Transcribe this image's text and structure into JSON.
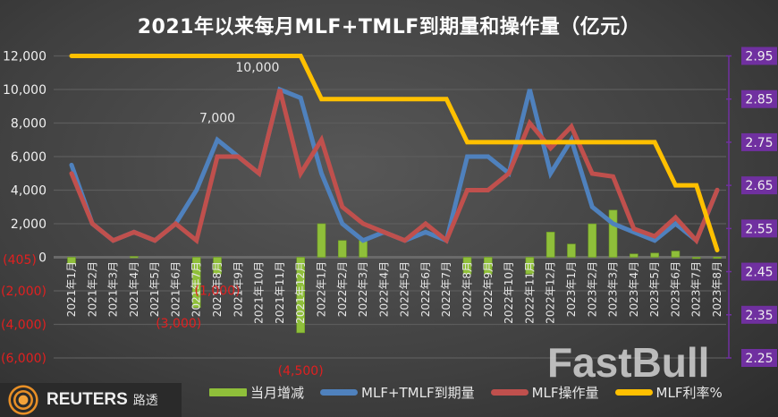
{
  "title": "2021年以来每月MLF+TMLF到期量和操作量（亿元）",
  "chart_data": {
    "type": "bar+line",
    "title": "2021年以来每月MLF+TMLF到期量和操作量（亿元）",
    "categories": [
      "2021年1月",
      "2021年2月",
      "2021年3月",
      "2021年4月",
      "2021年5月",
      "2021年6月",
      "2021年7月",
      "2021年8月",
      "2021年9月",
      "2021年10月",
      "2021年11月",
      "2021年12月",
      "2022年1月",
      "2022年2月",
      "2022年3月",
      "2022年4月",
      "2022年5月",
      "2022年6月",
      "2022年7月",
      "2022年8月",
      "2022年9月",
      "2022年10月",
      "2022年11月",
      "2022年12月",
      "2023年1月",
      "2023年2月",
      "2023年3月",
      "2023年4月",
      "2023年5月",
      "2023年6月",
      "2023年7月",
      "2023年8月"
    ],
    "series": [
      {
        "name": "当月增减",
        "type": "bar",
        "axis": "left",
        "color": "#8fbf3a",
        "values": [
          -405,
          0,
          0,
          50,
          0,
          0,
          -3000,
          -1000,
          0,
          0,
          0,
          -4500,
          2000,
          1000,
          1000,
          0,
          0,
          0,
          0,
          -1000,
          -1000,
          0,
          -1000,
          1500,
          790,
          1990,
          2810,
          200,
          250,
          370,
          -30,
          10
        ]
      },
      {
        "name": "MLF+TMLF到期量",
        "type": "line",
        "axis": "left",
        "color": "#4f81bd",
        "values": [
          5500,
          2000,
          1000,
          1500,
          1000,
          2000,
          4000,
          7000,
          6000,
          5000,
          10000,
          9500,
          5000,
          2000,
          1000,
          1500,
          1000,
          1500,
          1000,
          6000,
          6000,
          5000,
          10000,
          5000,
          7000,
          3000,
          2000,
          1500,
          1000,
          2000,
          1000,
          4000
        ]
      },
      {
        "name": "MLF操作量",
        "type": "line",
        "axis": "left",
        "color": "#c0504d",
        "values": [
          5000,
          2000,
          1000,
          1500,
          1000,
          2000,
          1000,
          6000,
          6000,
          5000,
          10000,
          5000,
          7000,
          3000,
          2000,
          1500,
          1000,
          2000,
          1000,
          4000,
          4000,
          5000,
          8000,
          6500,
          7790,
          4990,
          4810,
          1700,
          1250,
          2370,
          1000,
          4010
        ]
      },
      {
        "name": "MLF利率%",
        "type": "line",
        "axis": "right",
        "color": "#ffc000",
        "values": [
          2.95,
          2.95,
          2.95,
          2.95,
          2.95,
          2.95,
          2.95,
          2.95,
          2.95,
          2.95,
          2.95,
          2.95,
          2.85,
          2.85,
          2.85,
          2.85,
          2.85,
          2.85,
          2.85,
          2.75,
          2.75,
          2.75,
          2.75,
          2.75,
          2.75,
          2.75,
          2.75,
          2.75,
          2.75,
          2.65,
          2.65,
          2.5
        ]
      }
    ],
    "left_axis": {
      "range": [
        -6000,
        12000
      ],
      "ticks": [
        12000,
        10000,
        8000,
        6000,
        4000,
        2000,
        0,
        -2000,
        -4000,
        -6000
      ],
      "tick_labels": [
        "12,000",
        "10,000",
        "8,000",
        "6,000",
        "4,000",
        "2,000",
        "0",
        "(2,000)",
        "(4,000)",
        "(6,000)"
      ]
    },
    "right_axis": {
      "range": [
        2.25,
        2.95
      ],
      "ticks": [
        2.95,
        2.85,
        2.75,
        2.65,
        2.55,
        2.45,
        2.35,
        2.25
      ],
      "tick_labels": [
        "2.95",
        "2.85",
        "2.75",
        "2.65",
        "2.55",
        "2.45",
        "2.35",
        "2.25"
      ],
      "label_bg": "#7030a0"
    },
    "data_labels": [
      {
        "series": "MLF+TMLF到期量",
        "category": "2021年8月",
        "text": "7,000",
        "color": "#e8e8e8"
      },
      {
        "series": "MLF+TMLF到期量",
        "category": "2021年11月",
        "text": "10,000",
        "color": "#e8e8e8"
      },
      {
        "series": "当月增减",
        "category": "2021年1月",
        "text": "(405)",
        "color": "#e02020"
      },
      {
        "series": "当月增减",
        "category": "2021年7月",
        "text": "(3,000)",
        "color": "#e02020"
      },
      {
        "series": "当月增减",
        "category": "2021年8月",
        "text": "(1,000)",
        "color": "#e02020"
      },
      {
        "series": "当月增减",
        "category": "2021年12月",
        "text": "(4,500)",
        "color": "#e02020"
      }
    ],
    "grid": true,
    "legend": "bottom"
  },
  "branding": {
    "reuters": "REUTERS",
    "reuters_cn": "路透",
    "watermark": "FastBull"
  }
}
